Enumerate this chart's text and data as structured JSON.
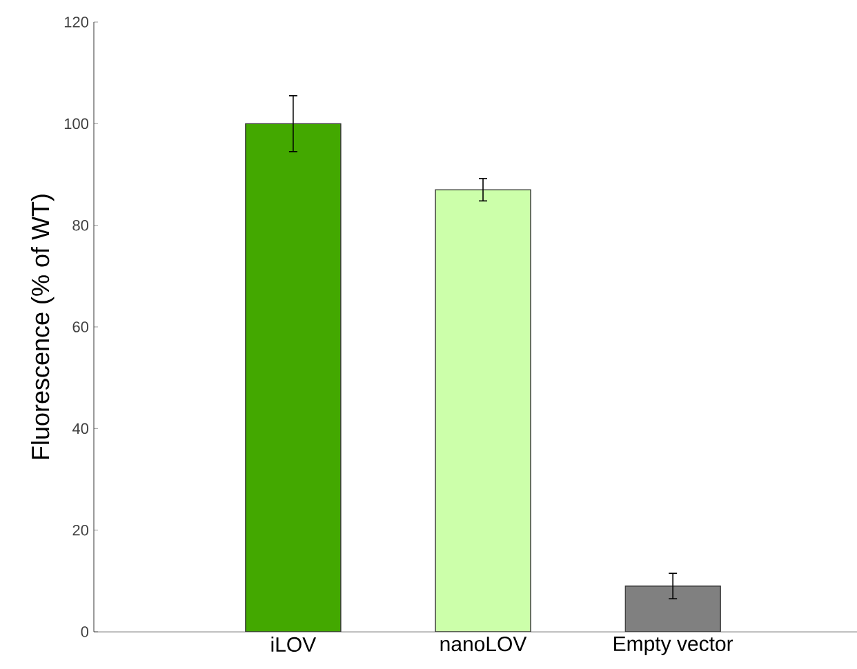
{
  "chart_data": {
    "type": "bar",
    "ylabel": "Fluorescence (% of WT)",
    "categories": [
      "iLOV",
      "nanoLOV",
      "Empty vector"
    ],
    "values": [
      100,
      87,
      9
    ],
    "errors": [
      5.5,
      2.2,
      2.5
    ],
    "colors": [
      "#43a800",
      "#ccffaa",
      "#808080"
    ],
    "ylim": [
      0,
      120
    ],
    "yticks": [
      0,
      20,
      40,
      60,
      80,
      100,
      120
    ]
  }
}
